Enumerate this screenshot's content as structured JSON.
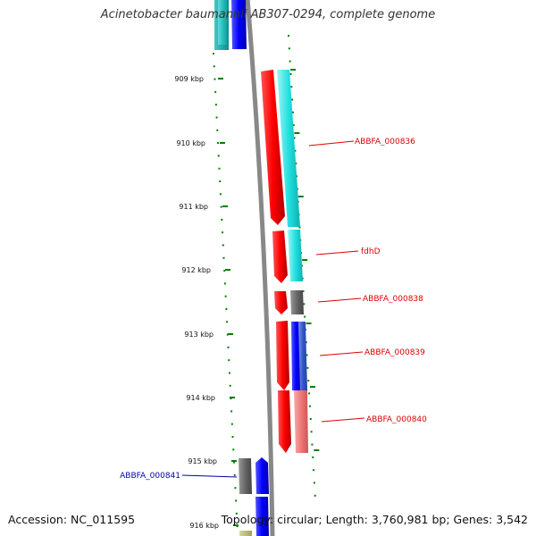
{
  "title": "Acinetobacter baumannii AB307-0294, complete genome",
  "footer": {
    "accession": "Accession: NC_011595",
    "topology": "Topology: circular; Length: 3,760,981 bp; Genes: 3,542"
  },
  "scale": {
    "ticks": [
      "909 kbp",
      "910 kbp",
      "911 kbp",
      "912 kbp",
      "913 kbp",
      "914 kbp",
      "915 kbp",
      "916 kbp"
    ]
  },
  "genes": [
    {
      "label": "ABBFA_000836",
      "color": "#dd0000"
    },
    {
      "label": "fdhD",
      "color": "#dd0000"
    },
    {
      "label": "ABBFA_000838",
      "color": "#dd0000"
    },
    {
      "label": "ABBFA_000839",
      "color": "#dd0000"
    },
    {
      "label": "ABBFA_000840",
      "color": "#dd0000"
    },
    {
      "label": "ABBFA_000841",
      "color": "#0000aa"
    }
  ],
  "colors": {
    "forward_cds": "#ff0000",
    "reverse_cds": "#0000ff",
    "cog_cyan": "#22e0e0",
    "cog_gray": "#666666",
    "cog_blue": "#3355cc",
    "cog_pink": "#ee7777",
    "tick_green": "#008000",
    "backbone": "#888888"
  }
}
